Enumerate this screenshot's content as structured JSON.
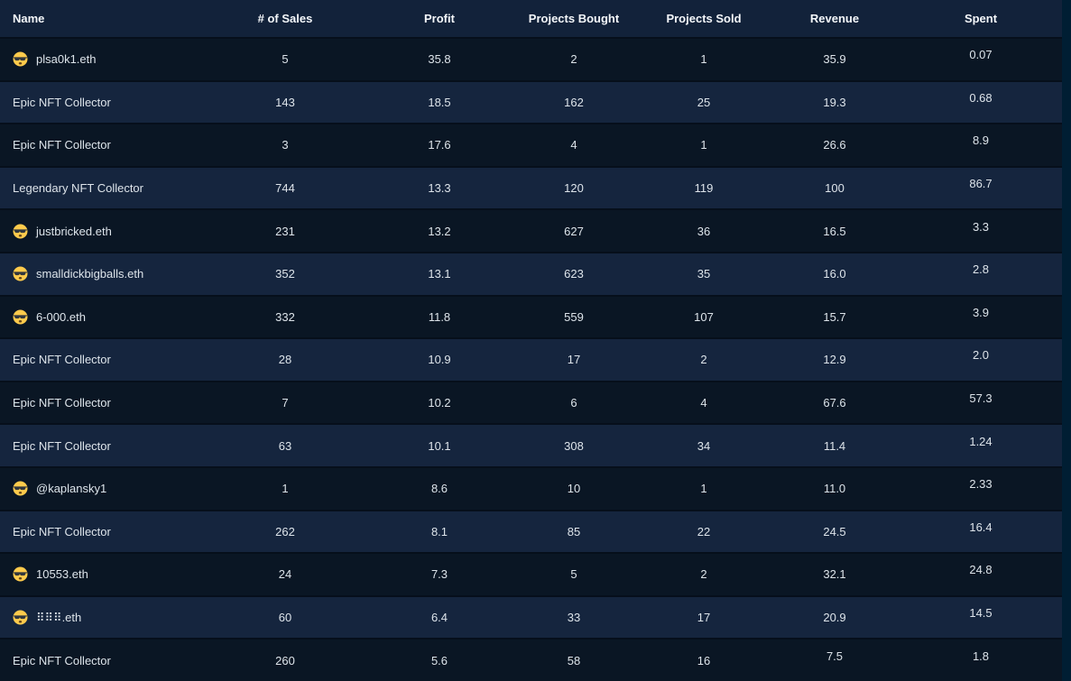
{
  "table": {
    "columns": [
      {
        "key": "name",
        "label": "Name"
      },
      {
        "key": "sales",
        "label": "# of Sales"
      },
      {
        "key": "profit",
        "label": "Profit"
      },
      {
        "key": "bought",
        "label": "Projects Bought"
      },
      {
        "key": "sold",
        "label": "Projects Sold"
      },
      {
        "key": "revenue",
        "label": "Revenue"
      },
      {
        "key": "spent",
        "label": "Spent"
      }
    ],
    "rows": [
      {
        "name": "plsa0k1.eth",
        "icon": "sunglasses-face-emoji",
        "sales": "5",
        "profit": "35.8",
        "bought": "2",
        "sold": "1",
        "revenue": "35.9",
        "spent": "0.07"
      },
      {
        "name": "Epic NFT Collector",
        "icon": null,
        "sales": "143",
        "profit": "18.5",
        "bought": "162",
        "sold": "25",
        "revenue": "19.3",
        "spent": "0.68"
      },
      {
        "name": "Epic NFT Collector",
        "icon": null,
        "sales": "3",
        "profit": "17.6",
        "bought": "4",
        "sold": "1",
        "revenue": "26.6",
        "spent": "8.9"
      },
      {
        "name": "Legendary NFT Collector",
        "icon": null,
        "sales": "744",
        "profit": "13.3",
        "bought": "120",
        "sold": "119",
        "revenue": "100",
        "spent": "86.7"
      },
      {
        "name": "justbricked.eth",
        "icon": "sunglasses-face-emoji",
        "sales": "231",
        "profit": "13.2",
        "bought": "627",
        "sold": "36",
        "revenue": "16.5",
        "spent": "3.3"
      },
      {
        "name": "smalldickbigballs.eth",
        "icon": "sunglasses-face-emoji",
        "sales": "352",
        "profit": "13.1",
        "bought": "623",
        "sold": "35",
        "revenue": "16.0",
        "spent": "2.8"
      },
      {
        "name": "6-000.eth",
        "icon": "sunglasses-face-emoji",
        "sales": "332",
        "profit": "11.8",
        "bought": "559",
        "sold": "107",
        "revenue": "15.7",
        "spent": "3.9"
      },
      {
        "name": "Epic NFT Collector",
        "icon": null,
        "sales": "28",
        "profit": "10.9",
        "bought": "17",
        "sold": "2",
        "revenue": "12.9",
        "spent": "2.0"
      },
      {
        "name": "Epic NFT Collector",
        "icon": null,
        "sales": "7",
        "profit": "10.2",
        "bought": "6",
        "sold": "4",
        "revenue": "67.6",
        "spent": "57.3"
      },
      {
        "name": "Epic NFT Collector",
        "icon": null,
        "sales": "63",
        "profit": "10.1",
        "bought": "308",
        "sold": "34",
        "revenue": "11.4",
        "spent": "1.24"
      },
      {
        "name": "@kaplansky1",
        "icon": "sunglasses-face-emoji",
        "sales": "1",
        "profit": "8.6",
        "bought": "10",
        "sold": "1",
        "revenue": "11.0",
        "spent": "2.33"
      },
      {
        "name": "Epic NFT Collector",
        "icon": null,
        "sales": "262",
        "profit": "8.1",
        "bought": "85",
        "sold": "22",
        "revenue": "24.5",
        "spent": "16.4"
      },
      {
        "name": "10553.eth",
        "icon": "sunglasses-face-emoji",
        "sales": "24",
        "profit": "7.3",
        "bought": "5",
        "sold": "2",
        "revenue": "32.1",
        "spent": "24.8"
      },
      {
        "name": "⠿⠿⠿.eth",
        "icon": "sunglasses-face-emoji",
        "sales": "60",
        "profit": "6.4",
        "bought": "33",
        "sold": "17",
        "revenue": "20.9",
        "spent": "14.5"
      },
      {
        "name": "Epic NFT Collector",
        "icon": null,
        "sales": "260",
        "profit": "5.6",
        "bought": "58",
        "sold": "16",
        "revenue": "7.5",
        "spent": "1.8"
      }
    ]
  },
  "colors": {
    "page_background": "#001e33",
    "row_dark": "#0a1624",
    "row_light": "#15253e",
    "header_background": "#12223a",
    "text": "#dde4ea",
    "header_text": "#f4f7fa",
    "emoji_face": "#ffcb4c",
    "emoji_glasses": "#31373d"
  }
}
